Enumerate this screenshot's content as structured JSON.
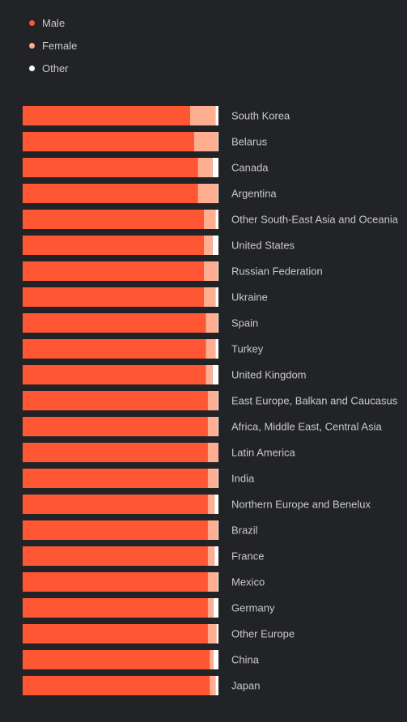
{
  "chart_data": {
    "type": "bar",
    "orientation": "horizontal",
    "stacked": "percent",
    "legend_placement": "top-left",
    "grid": false,
    "xlim": [
      0,
      100
    ],
    "categories": [
      "South Korea",
      "Belarus",
      "Canada",
      "Argentina",
      "Other South-East Asia and Oceania",
      "United States",
      "Russian Federation",
      "Ukraine",
      "Spain",
      "Turkey",
      "United Kingdom",
      "East Europe, Balkan and Caucasus",
      "Africa, Middle East, Central Asia",
      "Latin America",
      "India",
      "Northern Europe and Benelux",
      "Brazil",
      "France",
      "Mexico",
      "Germany",
      "Other Europe",
      "China",
      "Japan"
    ],
    "series": [
      {
        "name": "Male",
        "color": "#ff5733",
        "values": [
          85.5,
          87.5,
          89.5,
          89.5,
          92.5,
          92.5,
          92.5,
          92.5,
          93.5,
          93.5,
          93.5,
          94.5,
          94.5,
          94.5,
          94.5,
          94.5,
          94.5,
          94.5,
          94.5,
          94.5,
          94.5,
          95.5,
          95.5
        ]
      },
      {
        "name": "Female",
        "color": "#ffae91",
        "values": [
          13.0,
          12.0,
          7.5,
          10.0,
          6.0,
          4.5,
          7.0,
          6.0,
          6.0,
          5.0,
          3.5,
          5.0,
          5.0,
          5.5,
          5.0,
          3.5,
          5.0,
          3.5,
          5.0,
          3.0,
          4.5,
          2.0,
          3.0
        ]
      },
      {
        "name": "Other",
        "color": "#ffffff",
        "values": [
          1.5,
          0.5,
          3.0,
          0.5,
          1.5,
          3.0,
          0.5,
          1.5,
          0.5,
          1.5,
          3.0,
          0.5,
          0.5,
          0.0,
          0.5,
          2.0,
          0.5,
          2.0,
          0.5,
          2.5,
          1.0,
          2.5,
          1.5
        ]
      }
    ]
  }
}
